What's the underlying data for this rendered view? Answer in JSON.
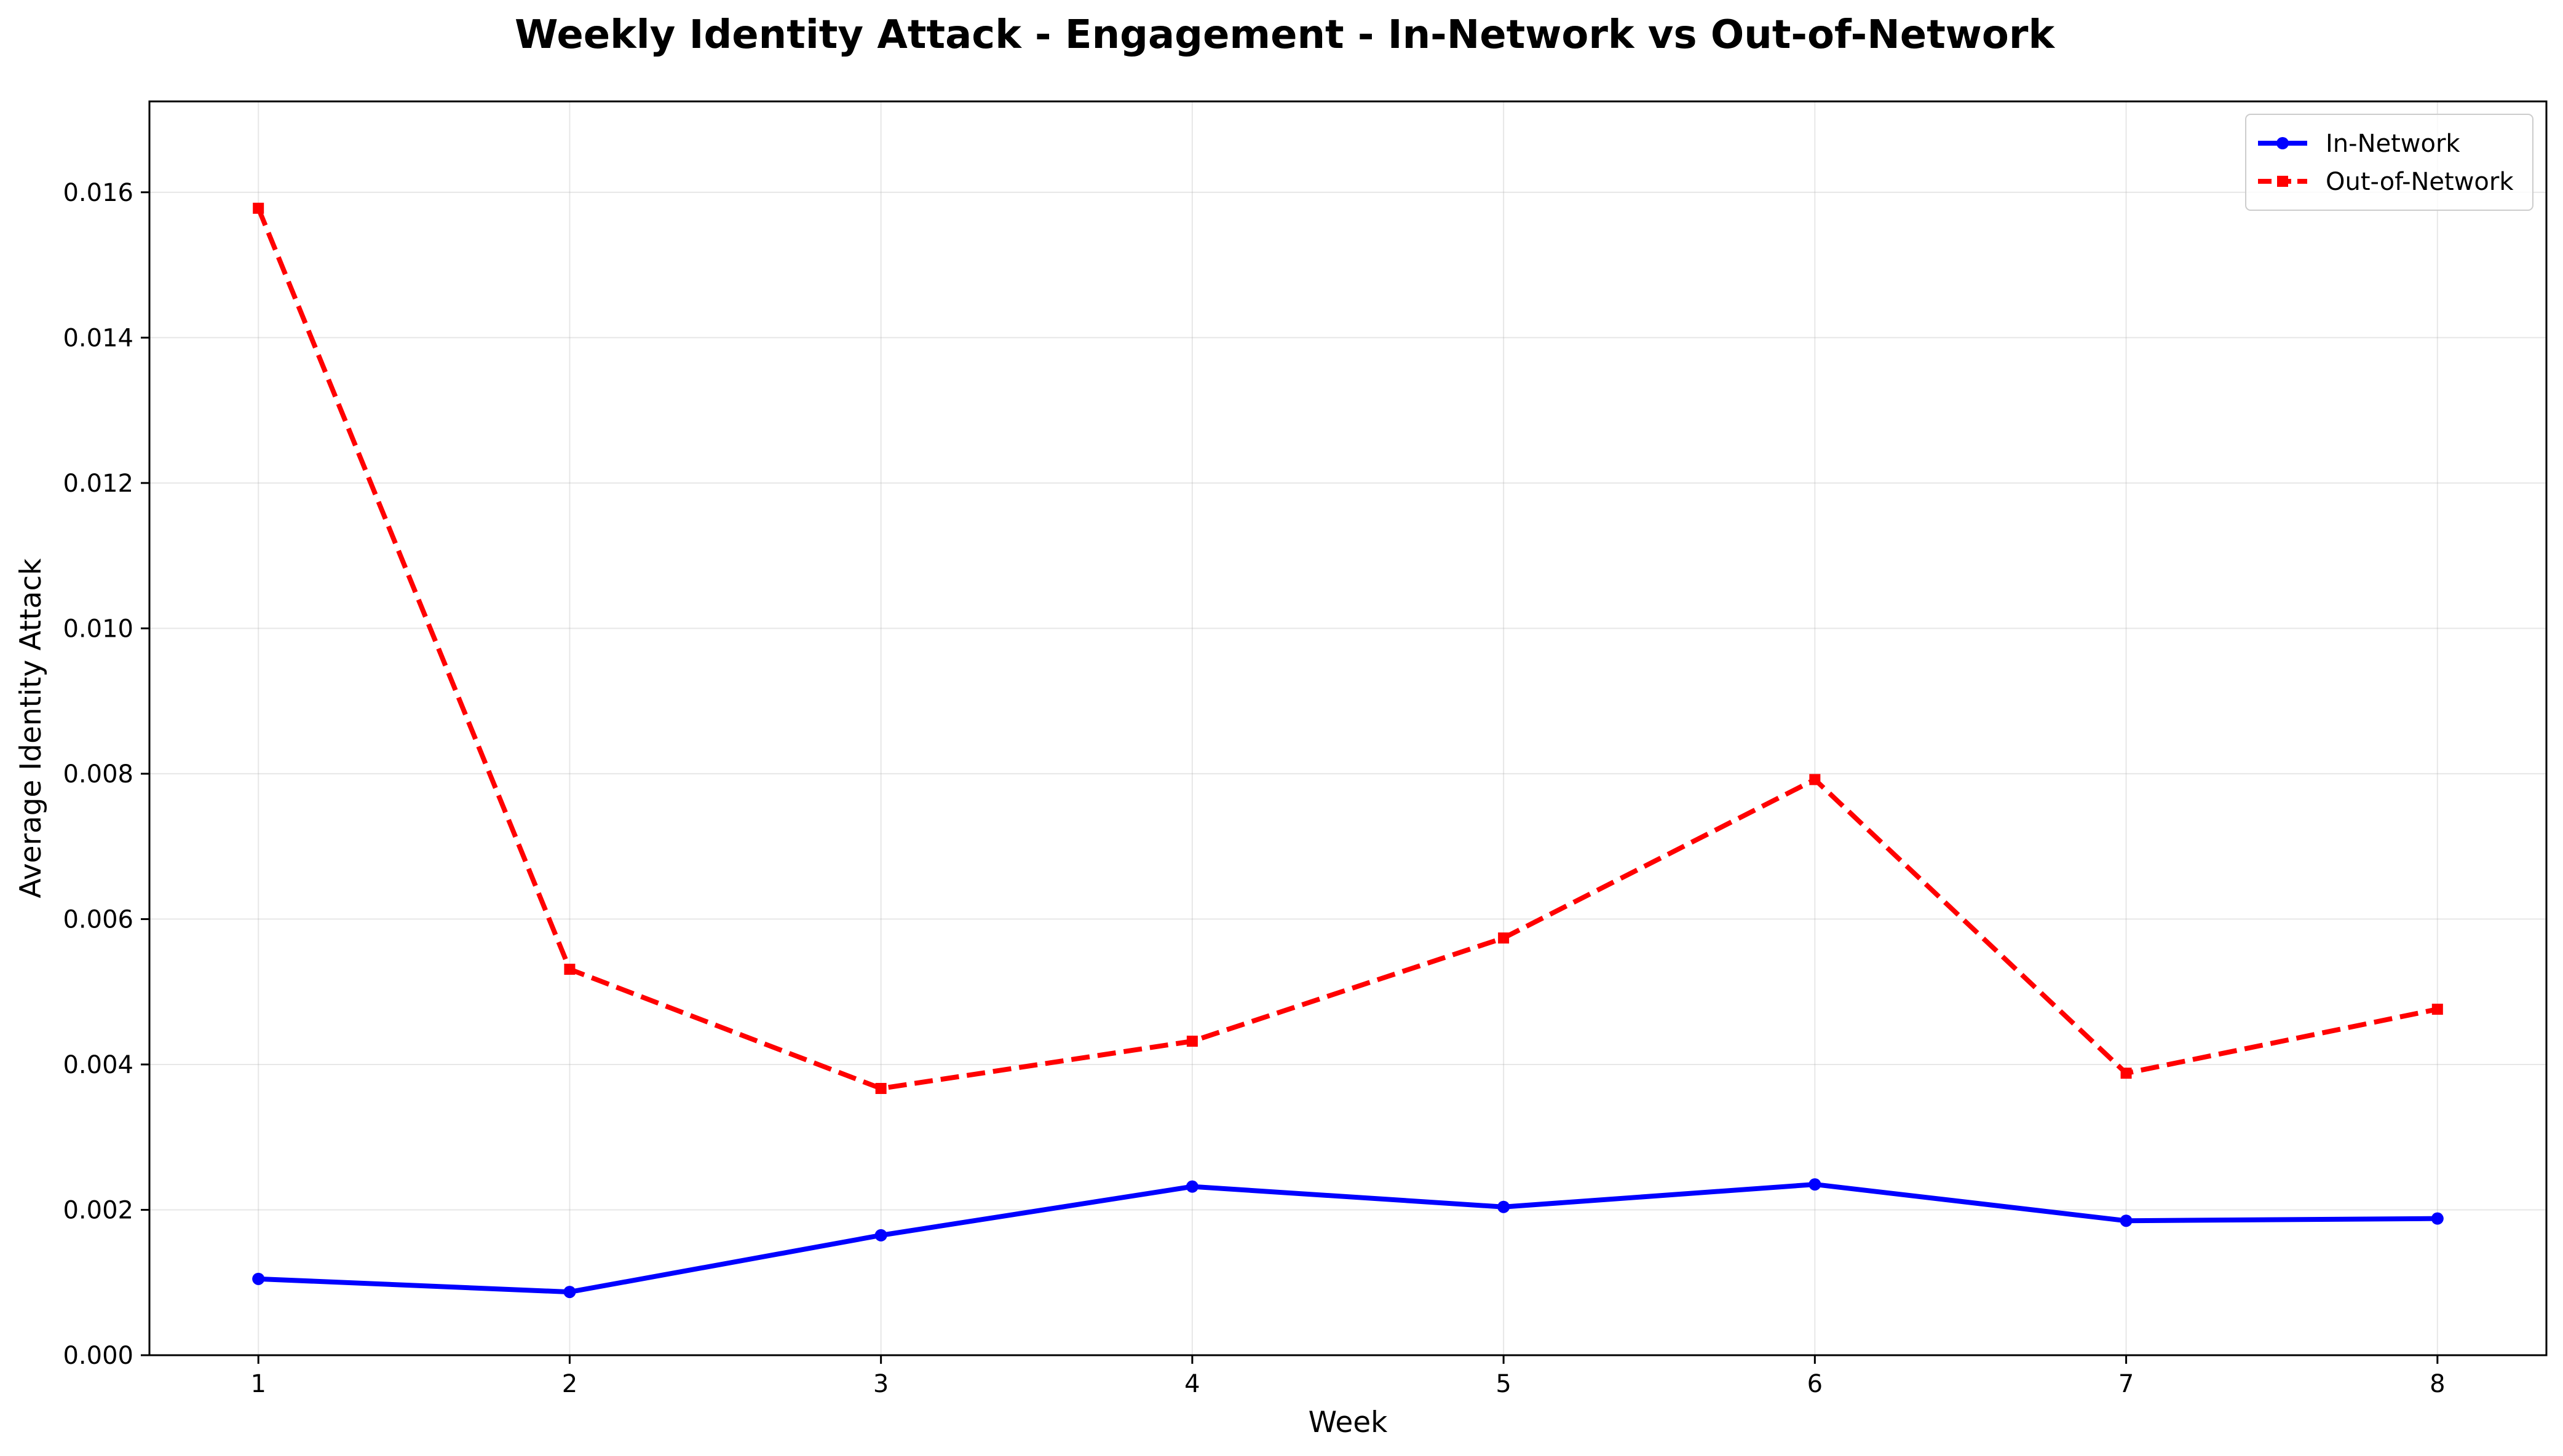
{
  "chart_data": {
    "type": "line",
    "title": "Weekly Identity Attack - Engagement - In-Network vs Out-of-Network",
    "xlabel": "Week",
    "ylabel": "Average Identity Attack",
    "x": [
      1,
      2,
      3,
      4,
      5,
      6,
      7,
      8
    ],
    "xlim": [
      0.65,
      8.35
    ],
    "ylim": [
      0,
      0.01725
    ],
    "xticks": [
      "1",
      "2",
      "3",
      "4",
      "5",
      "6",
      "7",
      "8"
    ],
    "yticks": [
      "0.000",
      "0.002",
      "0.004",
      "0.006",
      "0.008",
      "0.010",
      "0.012",
      "0.014",
      "0.016"
    ],
    "grid": true,
    "legend_position": "top-right",
    "series": [
      {
        "name": "In-Network",
        "color": "#0000ff",
        "line_style": "solid",
        "marker": "circle",
        "values": [
          0.00105,
          0.00087,
          0.00165,
          0.00232,
          0.00204,
          0.00235,
          0.00185,
          0.00188
        ]
      },
      {
        "name": "Out-of-Network",
        "color": "#ff0000",
        "line_style": "dashed",
        "marker": "square",
        "values": [
          0.01578,
          0.00531,
          0.00367,
          0.00432,
          0.00574,
          0.00792,
          0.00388,
          0.00476
        ]
      }
    ]
  }
}
